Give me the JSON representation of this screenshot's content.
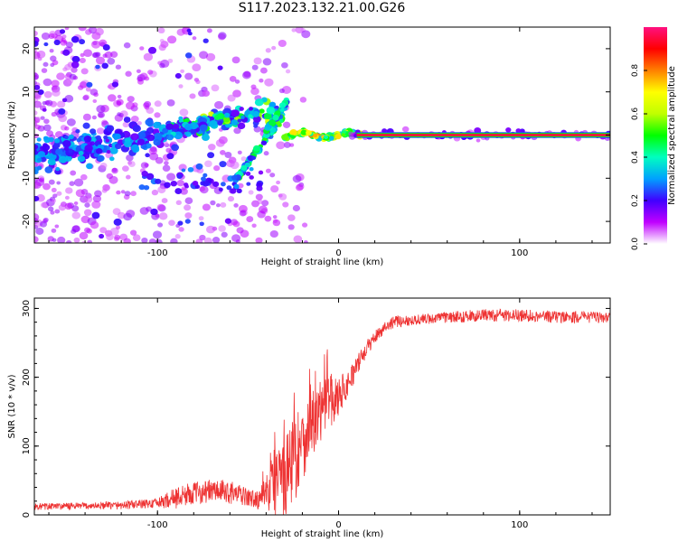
{
  "title": "S117.2023.132.21.00.G26",
  "chart_data": [
    {
      "type": "heatmap",
      "xlabel": "Height of straight line (km)",
      "ylabel": "Frequency (Hz)",
      "xlim": [
        -168,
        150
      ],
      "ylim": [
        -25,
        25
      ],
      "xticks": [
        -100,
        0,
        100
      ],
      "xtick_labels": [
        "-100",
        "0",
        "100"
      ],
      "yticks": [
        20,
        10,
        0,
        -10,
        -20
      ],
      "ytick_labels": [
        "20",
        "10",
        "0",
        "-10",
        "-20"
      ],
      "colorbar": {
        "label": "Normalized spectral amplitude",
        "range": [
          0,
          1
        ],
        "ticks": [
          0.0,
          0.2,
          0.4,
          0.6,
          0.8
        ],
        "tick_labels": [
          "0.0",
          "0.2",
          "0.4",
          "0.6",
          "0.8"
        ],
        "colormap": [
          "#ffffff",
          "#c000ff",
          "#4000ff",
          "#00a0ff",
          "#00ffc0",
          "#00ff00",
          "#c0ff00",
          "#ffff00",
          "#ff8000",
          "#ff0000",
          "#ff1080"
        ]
      },
      "features": [
        {
          "name": "noisy scatter region",
          "x_range": [
            -168,
            -20
          ],
          "freq_range": [
            -25,
            25
          ]
        },
        {
          "name": "descending doppler branch",
          "points": [
            [
              -55,
              -10
            ],
            [
              -45,
              -6
            ],
            [
              -40,
              -2
            ],
            [
              -35,
              3
            ],
            [
              -30,
              5
            ]
          ]
        },
        {
          "name": "ascending doppler branch",
          "points": [
            [
              -130,
              -5
            ],
            [
              -100,
              -2
            ],
            [
              -80,
              0
            ],
            [
              -60,
              3
            ],
            [
              -45,
              6
            ],
            [
              -33,
              7
            ]
          ]
        },
        {
          "name": "steady carrier line",
          "x_range": [
            10,
            150
          ],
          "freq": 0,
          "amplitude": 0.95
        }
      ]
    },
    {
      "type": "line",
      "xlabel": "Height of straight line (km)",
      "ylabel": "SNR (10 * v/v)",
      "xlim": [
        -168,
        150
      ],
      "ylim": [
        0,
        315
      ],
      "xticks": [
        -100,
        0,
        100
      ],
      "xtick_labels": [
        "-100",
        "0",
        "100"
      ],
      "yticks": [
        0,
        100,
        200,
        300
      ],
      "ytick_labels": [
        "0",
        "100",
        "200",
        "300"
      ],
      "color": "#ee3333",
      "series": [
        {
          "name": "SNR",
          "x": [
            -168,
            -140,
            -120,
            -100,
            -90,
            -80,
            -70,
            -60,
            -50,
            -45,
            -40,
            -35,
            -30,
            -25,
            -20,
            -15,
            -10,
            -5,
            0,
            5,
            10,
            15,
            20,
            25,
            30,
            40,
            60,
            80,
            100,
            120,
            150
          ],
          "mean": [
            12,
            13,
            14,
            17,
            25,
            32,
            35,
            33,
            25,
            22,
            30,
            55,
            70,
            80,
            105,
            130,
            150,
            165,
            175,
            190,
            215,
            240,
            258,
            272,
            280,
            283,
            287,
            290,
            290,
            288,
            287
          ],
          "noise": [
            5,
            5,
            6,
            7,
            16,
            16,
            17,
            17,
            13,
            13,
            25,
            60,
            75,
            70,
            55,
            50,
            45,
            40,
            30,
            20,
            15,
            12,
            10,
            9,
            9,
            8,
            8,
            9,
            9,
            9,
            8
          ]
        }
      ]
    }
  ]
}
